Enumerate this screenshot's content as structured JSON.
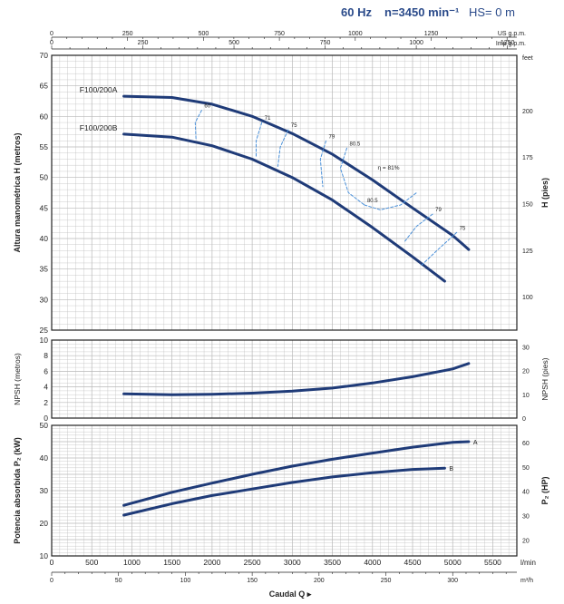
{
  "header": {
    "freq": "60 Hz",
    "speed": "n=3450 min⁻¹",
    "hs": "HS= 0 m"
  },
  "colors": {
    "curve": "#1f3b78",
    "eff": "#4a90d9",
    "grid": "#b8b8b8",
    "axis": "#222222"
  },
  "top_axes": {
    "us_label": "US g.p.m.",
    "imp_label": "Imp g.p.m.",
    "us_ticks": [
      0,
      250,
      500,
      750,
      1000,
      1250
    ],
    "imp_ticks": [
      0,
      250,
      500,
      750,
      1000,
      1250
    ]
  },
  "bottom_axes": {
    "lmin_ticks": [
      0,
      500,
      1000,
      1500,
      2000,
      2500,
      3000,
      3500,
      4000,
      4500,
      5000,
      5500
    ],
    "lmin_unit": "l/min",
    "m3h_ticks": [
      0,
      50,
      100,
      150,
      200,
      250,
      300
    ],
    "m3h_unit": "m³/h",
    "xlabel": "Caudal Q"
  },
  "chart_data": [
    {
      "type": "line",
      "panel": "head",
      "ylabel": "Altura manométrica H (metros)",
      "ylabel_right": "H (pies)",
      "unit_right": "feet",
      "ylim": [
        25,
        70
      ],
      "yticks": [
        25,
        30,
        35,
        40,
        45,
        50,
        55,
        60,
        65,
        70
      ],
      "yticks_right": [
        100,
        125,
        150,
        175,
        200
      ],
      "xlim_lmin": [
        0,
        5800
      ],
      "series": [
        {
          "name": "F100/200A",
          "x": [
            900,
            1500,
            2000,
            2500,
            3000,
            3500,
            4000,
            4500,
            5000,
            5200
          ],
          "y": [
            63.3,
            63.1,
            62.0,
            60.0,
            57.2,
            53.8,
            49.6,
            45.0,
            40.5,
            38.2
          ]
        },
        {
          "name": "F100/200B",
          "x": [
            900,
            1500,
            2000,
            2500,
            3000,
            3500,
            4000,
            4500,
            4900
          ],
          "y": [
            57.1,
            56.6,
            55.2,
            53.0,
            50.0,
            46.3,
            41.8,
            37.0,
            33.0
          ]
        }
      ],
      "efficiency": {
        "label_max": "η = 81%",
        "lines": [
          {
            "label": "60",
            "x": [
              1870,
              1790,
              1800
            ],
            "y": [
              61.0,
              59.0,
              56.2
            ]
          },
          {
            "label": "71",
            "x": [
              2620,
              2550,
              2550
            ],
            "y": [
              59.0,
              56.0,
              53.5
            ]
          },
          {
            "label": "75",
            "x": [
              2950,
              2850,
              2820
            ],
            "y": [
              57.8,
              55.0,
              51.8
            ]
          },
          {
            "label": "79",
            "x": [
              3420,
              3350,
              3380
            ],
            "y": [
              56.0,
              53.0,
              48.5
            ]
          },
          {
            "label": "80.5",
            "x": [
              3680,
              3600,
              3700,
              3900
            ],
            "y": [
              54.8,
              51.5,
              47.5,
              45.5
            ]
          },
          {
            "label": "80.5",
            "x": [
              3900,
              4100,
              4350,
              4550
            ],
            "y": [
              45.5,
              44.7,
              45.5,
              47.5
            ]
          },
          {
            "label": "79",
            "x": [
              4750,
              4550,
              4400
            ],
            "y": [
              44.0,
              42.0,
              39.5
            ]
          },
          {
            "label": "75",
            "x": [
              5050,
              4800,
              4600
            ],
            "y": [
              41.0,
              38.0,
              35.5
            ]
          }
        ]
      }
    },
    {
      "type": "line",
      "panel": "npsh",
      "ylabel": "NPSH (metros)",
      "ylabel_right": "NPSH (pies)",
      "ylim": [
        0,
        10
      ],
      "yticks": [
        0,
        2,
        4,
        6,
        8,
        10
      ],
      "yticks_right": [
        0,
        10,
        20,
        30
      ],
      "series": [
        {
          "name": "NPSH",
          "x": [
            900,
            1500,
            2000,
            2500,
            3000,
            3500,
            4000,
            4500,
            5000,
            5200
          ],
          "y": [
            3.1,
            3.0,
            3.05,
            3.2,
            3.45,
            3.85,
            4.5,
            5.3,
            6.3,
            7.0
          ]
        }
      ]
    },
    {
      "type": "line",
      "panel": "power",
      "ylabel": "Potencia absorbida P₂ (kW)",
      "ylabel_right": "P₂ (HP)",
      "ylim": [
        10,
        50
      ],
      "yticks": [
        10,
        20,
        30,
        40,
        50
      ],
      "yticks_right": [
        20,
        30,
        40,
        50,
        60
      ],
      "series": [
        {
          "name": "A",
          "x": [
            900,
            1500,
            2000,
            2500,
            3000,
            3500,
            4000,
            4500,
            5000,
            5200
          ],
          "y": [
            25.5,
            29.5,
            32.3,
            35.0,
            37.5,
            39.6,
            41.5,
            43.3,
            44.8,
            45.0
          ]
        },
        {
          "name": "B",
          "x": [
            900,
            1500,
            2000,
            2500,
            3000,
            3500,
            4000,
            4500,
            4900
          ],
          "y": [
            22.5,
            26.0,
            28.5,
            30.5,
            32.5,
            34.2,
            35.5,
            36.5,
            36.9
          ]
        }
      ]
    }
  ]
}
